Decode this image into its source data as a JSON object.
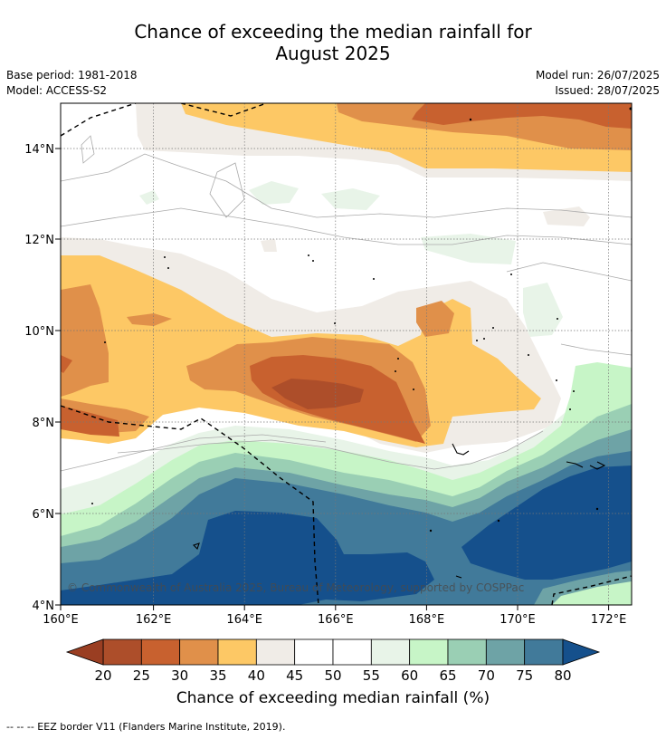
{
  "title": {
    "line1": "Chance of exceeding the median rainfall for",
    "line2": "August 2025"
  },
  "meta": {
    "base_period": "Base period: 1981-2018",
    "model": "Model: ACCESS-S2",
    "model_run": "Model run: 26/07/2025",
    "issued": "Issued: 28/07/2025"
  },
  "map": {
    "lon_range": [
      160,
      172.5
    ],
    "lat_range": [
      4,
      15
    ],
    "copyright": "© Commonwealth of Australia 2025, Bureau of Meteorology, supported by COSPPac",
    "lon_ticks": [
      "160°E",
      "162°E",
      "164°E",
      "166°E",
      "168°E",
      "170°E",
      "172°E"
    ],
    "lat_ticks": [
      "4°N",
      "6°N",
      "8°N",
      "10°N",
      "12°N",
      "14°N"
    ]
  },
  "colorbar": {
    "title": "Chance of exceeding median rainfall (%)",
    "ticks": [
      "20",
      "25",
      "30",
      "35",
      "40",
      "45",
      "50",
      "55",
      "60",
      "65",
      "70",
      "75",
      "80"
    ],
    "colors": [
      "#ad4e2a",
      "#c8612f",
      "#e0904a",
      "#fdc865",
      "#f0ece7",
      "#ffffff",
      "#ffffff",
      "#e8f4e8",
      "#c7f5c7",
      "#9acfb4",
      "#6ea3a6",
      "#417a9a"
    ],
    "low_color": "#9a3e22",
    "high_color": "#15508c"
  },
  "footer": "--  --  -- EEZ border V11 (Flanders Marine Institute, 2019)."
}
